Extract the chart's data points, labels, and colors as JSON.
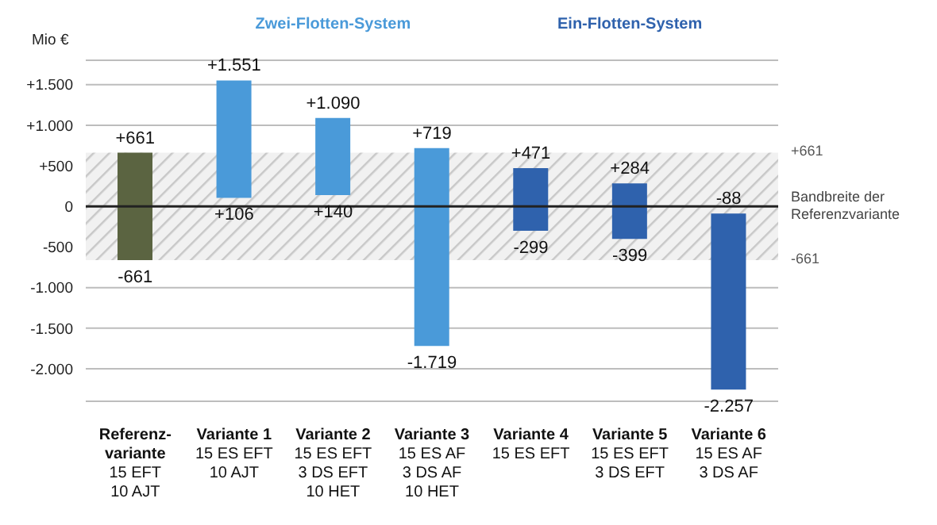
{
  "chart_data": {
    "type": "bar",
    "ylabel": "Mio €",
    "categories": [
      "Referenz-\nvariante\n15 EFT\n10 AJT",
      "Variante 1\n15 ES EFT\n10 AJT",
      "Variante 2\n15 ES EFT\n3 DS EFT\n10 HET",
      "Variante 3\n15 ES AF\n3 DS AF\n10 HET",
      "Variante 4\n15 ES EFT",
      "Variante 5\n15 ES EFT\n3 DS EFT",
      "Variante 6\n15 ES AF\n3 DS AF"
    ],
    "base": [
      -661,
      106,
      140,
      -1719,
      -299,
      -399,
      -2257
    ],
    "values": [
      1322,
      1445,
      950,
      2438,
      770,
      683,
      2169
    ],
    "colors": [
      "#5b6441",
      "#4a9ad9",
      "#4a9ad9",
      "#4a9ad9",
      "#2f62ad",
      "#2f62ad",
      "#2f62ad"
    ],
    "ylim": [
      -2400,
      1800
    ],
    "yticks": [
      {
        "value": -2000,
        "label": "-2.000"
      },
      {
        "value": -1500,
        "label": "-1.500"
      },
      {
        "value": -1000,
        "label": "-1.000"
      },
      {
        "value": -500,
        "label": "-500"
      },
      0,
      {
        "value": 500,
        "label": "+500"
      },
      {
        "value": 1000,
        "label": "+1.000"
      },
      {
        "value": 1500,
        "label": "+1.500"
      }
    ],
    "grid": "y",
    "bands": [
      {
        "axis": "y",
        "from": -661,
        "to": 661,
        "label": "Bandbreite der Referenzvariante",
        "color": "#c8c8c8"
      }
    ],
    "annotations": [
      "Zwei-Flotten-System",
      "Ein-Flotten-System",
      "+661",
      "-661",
      {
        "text": "+661",
        "x": "Referenz-\nvariante\n15 EFT\n10 AJT",
        "y": 661
      },
      {
        "text": "-661",
        "x": "Referenz-\nvariante\n15 EFT\n10 AJT",
        "y": -661
      },
      {
        "text": "+1.551",
        "x": "Variante 1\n15 ES EFT\n10 AJT",
        "y": 1551
      },
      {
        "text": "+106",
        "x": "Variante 1\n15 ES EFT\n10 AJT",
        "y": 106
      },
      {
        "text": "+1.090",
        "x": "Variante 2\n15 ES EFT\n3 DS EFT\n10 HET",
        "y": 1090
      },
      {
        "text": "+140",
        "x": "Variante 2\n15 ES EFT\n3 DS EFT\n10 HET",
        "y": 140
      },
      {
        "text": "+719",
        "x": "Variante 3\n15 ES AF\n3 DS AF\n10 HET",
        "y": 719
      },
      {
        "text": "-1.719",
        "x": "Variante 3\n15 ES AF\n3 DS AF\n10 HET",
        "y": -1719
      },
      {
        "text": "+471",
        "x": "Variante 4\n15 ES EFT",
        "y": 471
      },
      {
        "text": "-299",
        "x": "Variante 4\n15 ES EFT",
        "y": -299
      },
      {
        "text": "+284",
        "x": "Variante 5\n15 ES EFT\n3 DS EFT",
        "y": 284
      },
      {
        "text": "-399",
        "x": "Variante 5\n15 ES EFT\n3 DS EFT",
        "y": -399
      },
      {
        "text": "-88",
        "x": "Variante 6\n15 ES AF\n3 DS AF",
        "y": -88
      },
      {
        "text": "-2.257",
        "x": "Variante 6\n15 ES AF\n3 DS AF",
        "y": -2257
      }
    ]
  }
}
